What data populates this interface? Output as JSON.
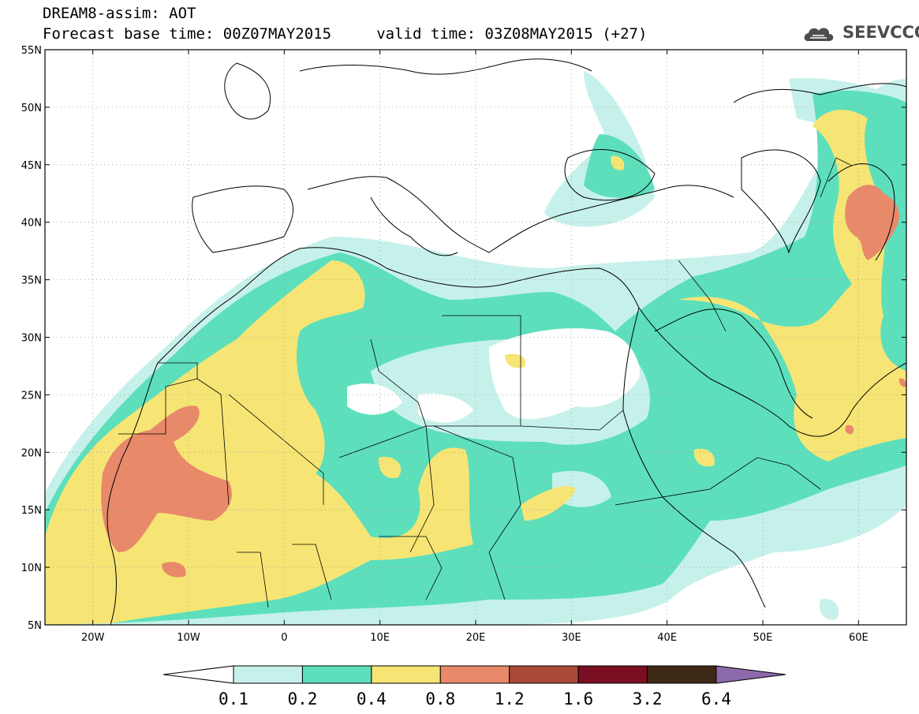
{
  "title": {
    "line1": "DREAM8-assim: AOT",
    "line2": "Forecast base time: 00Z07MAY2015     valid time: 03Z08MAY2015 (+27)"
  },
  "logo": {
    "text": "SEEVCCC",
    "icon": "cloud-logo-icon"
  },
  "map": {
    "lat_range": [
      5,
      55
    ],
    "lon_range": [
      -25,
      65
    ],
    "lat_ticks": [
      "5N",
      "10N",
      "15N",
      "20N",
      "25N",
      "30N",
      "35N",
      "40N",
      "45N",
      "50N",
      "55N"
    ],
    "lon_ticks": [
      "20W",
      "10W",
      "0",
      "10E",
      "20E",
      "30E",
      "40E",
      "50E",
      "60E"
    ],
    "grid": true
  },
  "colorbar": {
    "labels": [
      "0.1",
      "0.2",
      "0.4",
      "0.8",
      "1.2",
      "1.6",
      "3.2",
      "6.4"
    ],
    "colors": [
      "#ffffff",
      "#c6f1ea",
      "#5ddfbc",
      "#f6e574",
      "#e8896a",
      "#a9493a",
      "#7a0e23",
      "#3e2816",
      "#8c6aab"
    ]
  }
}
